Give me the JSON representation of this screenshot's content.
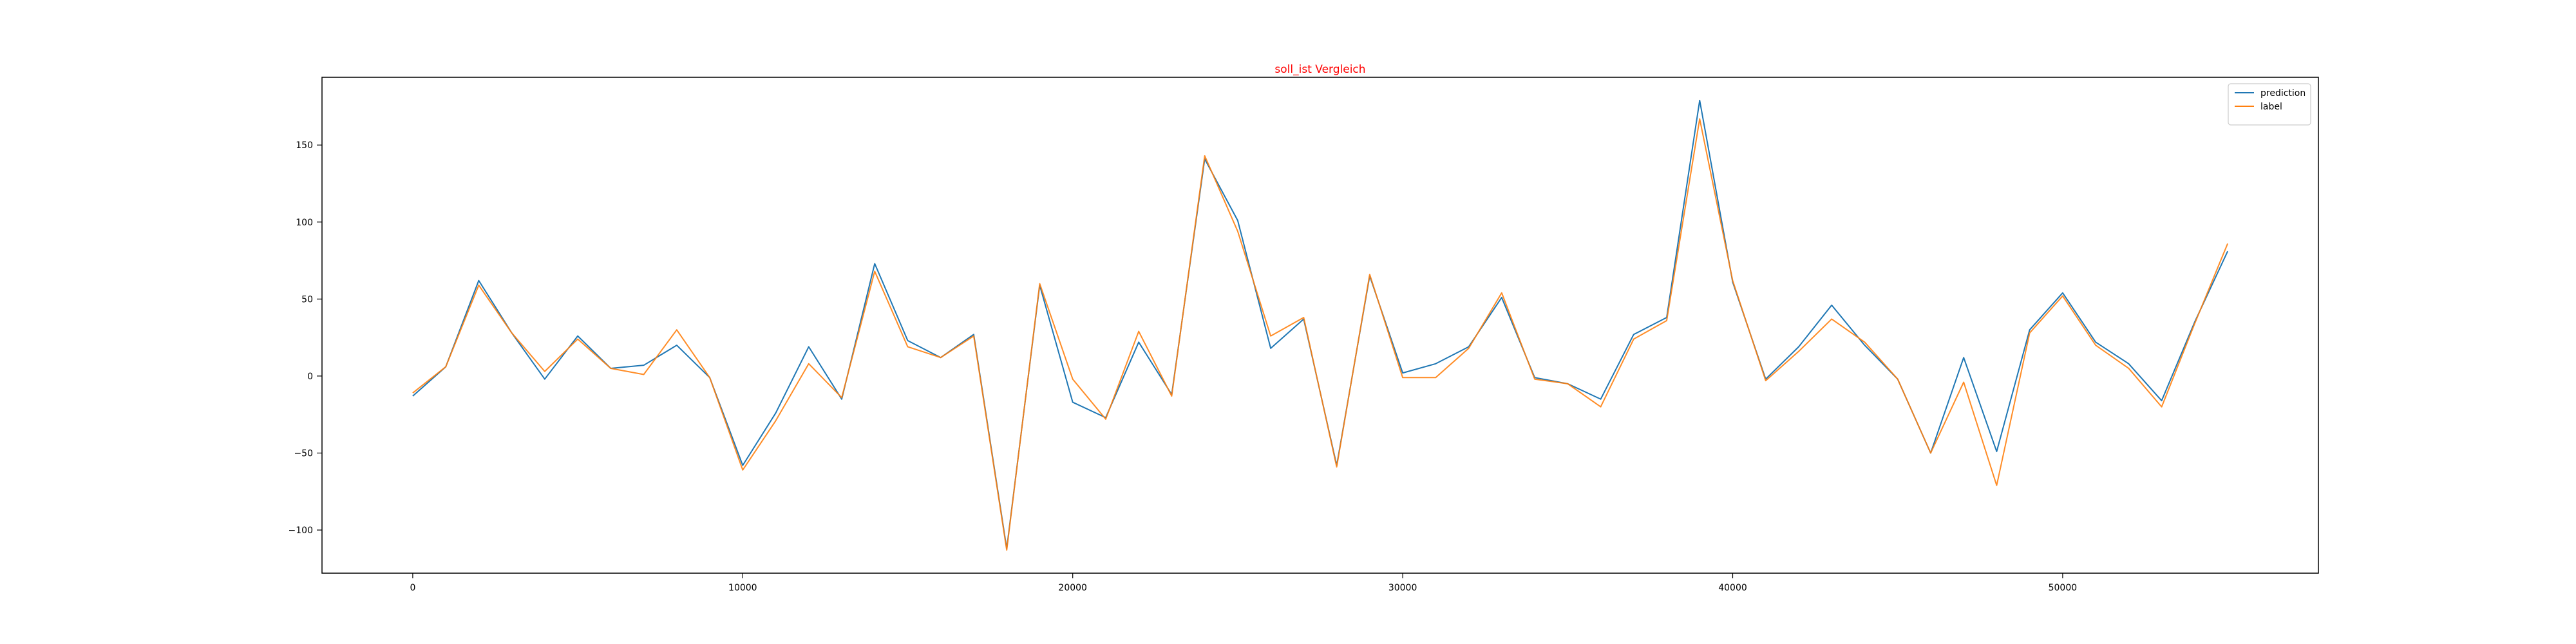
{
  "chart_data": {
    "type": "line",
    "title": "soll_ist Vergleich",
    "title_color": "#ff0000",
    "xlabel": "",
    "ylabel": "",
    "xlim": [
      -2750,
      57750
    ],
    "ylim": [
      -128,
      194
    ],
    "xticks": [
      0,
      10000,
      20000,
      30000,
      40000,
      50000
    ],
    "yticks": [
      -100,
      -50,
      0,
      50,
      100,
      150
    ],
    "grid": false,
    "legend_position": "top-right",
    "x": [
      0,
      1000,
      2000,
      3000,
      4000,
      5000,
      6000,
      7000,
      8000,
      9000,
      10000,
      11000,
      12000,
      13000,
      14000,
      15000,
      16000,
      17000,
      18000,
      19000,
      20000,
      21000,
      22000,
      23000,
      24000,
      25000,
      26000,
      27000,
      28000,
      29000,
      30000,
      31000,
      32000,
      33000,
      34000,
      35000,
      36000,
      37000,
      38000,
      39000,
      40000,
      41000,
      42000,
      43000,
      44000,
      45000,
      46000,
      47000,
      48000,
      49000,
      50000,
      51000,
      52000,
      53000,
      54000,
      55000
    ],
    "series": [
      {
        "name": "prediction",
        "color": "#1f77b4",
        "values": [
          -13,
          6,
          62,
          28,
          -2,
          26,
          5,
          7,
          20,
          -1,
          -58,
          -24,
          19,
          -15,
          73,
          23,
          12,
          27,
          -112,
          59,
          -17,
          -27,
          22,
          -12,
          141,
          101,
          18,
          37,
          -58,
          65,
          2,
          8,
          19,
          51,
          -1,
          -5,
          -15,
          27,
          38,
          179,
          61,
          -2,
          19,
          46,
          20,
          -2,
          -50,
          12,
          -49,
          30,
          54,
          22,
          8,
          -16,
          35,
          81
        ]
      },
      {
        "name": "label",
        "color": "#ff7f0e",
        "values": [
          -11,
          6,
          59,
          28,
          3,
          24,
          5,
          1,
          30,
          -1,
          -61,
          -29,
          8,
          -14,
          68,
          19,
          12,
          26,
          -113,
          60,
          -2,
          -28,
          29,
          -13,
          143,
          94,
          26,
          38,
          -59,
          66,
          -1,
          -1,
          18,
          54,
          -2,
          -5,
          -20,
          24,
          36,
          167,
          62,
          -3,
          16,
          37,
          22,
          -2,
          -50,
          -4,
          -71,
          28,
          52,
          20,
          5,
          -20,
          34,
          86
        ]
      }
    ]
  }
}
